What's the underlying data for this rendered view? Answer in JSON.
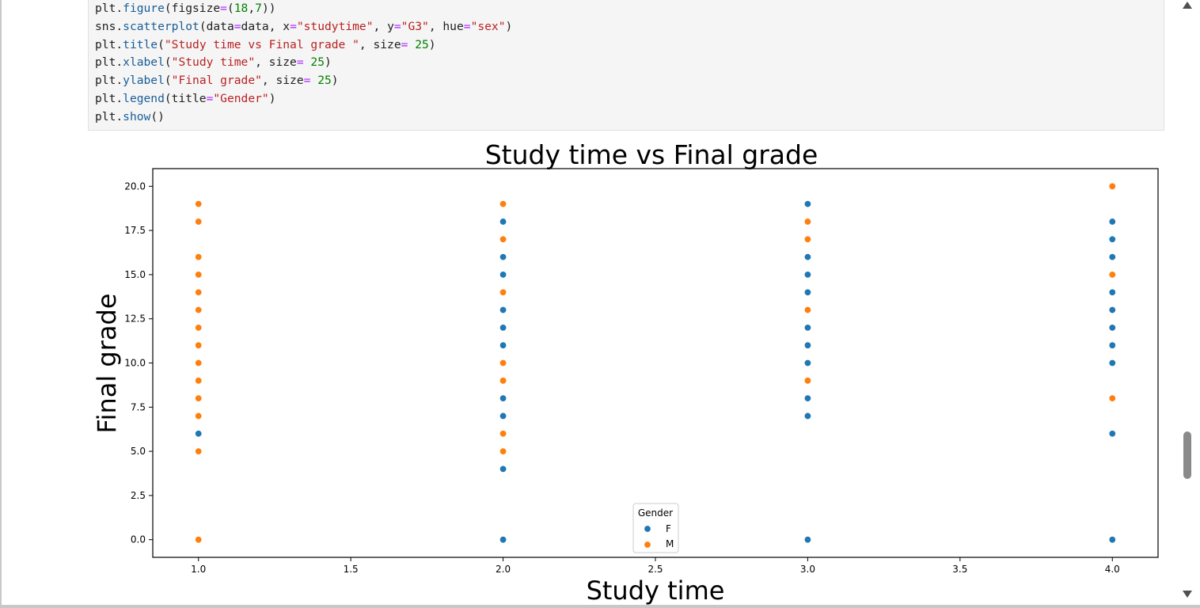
{
  "code": {
    "lines": [
      [
        {
          "t": "plt.",
          "c": "txt"
        },
        {
          "t": "figure",
          "c": "fn"
        },
        {
          "t": "(figsize",
          "c": "txt"
        },
        {
          "t": "=",
          "c": "op"
        },
        {
          "t": "(",
          "c": "txt"
        },
        {
          "t": "18",
          "c": "num"
        },
        {
          "t": ",",
          "c": "txt"
        },
        {
          "t": "7",
          "c": "num"
        },
        {
          "t": "))",
          "c": "txt"
        }
      ],
      [
        {
          "t": "sns.",
          "c": "txt"
        },
        {
          "t": "scatterplot",
          "c": "fn"
        },
        {
          "t": "(data",
          "c": "txt"
        },
        {
          "t": "=",
          "c": "op"
        },
        {
          "t": "data, x",
          "c": "txt"
        },
        {
          "t": "=",
          "c": "op"
        },
        {
          "t": "\"studytime\"",
          "c": "str"
        },
        {
          "t": ", y",
          "c": "txt"
        },
        {
          "t": "=",
          "c": "op"
        },
        {
          "t": "\"G3\"",
          "c": "str"
        },
        {
          "t": ", hue",
          "c": "txt"
        },
        {
          "t": "=",
          "c": "op"
        },
        {
          "t": "\"sex\"",
          "c": "str"
        },
        {
          "t": ")",
          "c": "txt"
        }
      ],
      [
        {
          "t": "plt.",
          "c": "txt"
        },
        {
          "t": "title",
          "c": "fn"
        },
        {
          "t": "(",
          "c": "txt"
        },
        {
          "t": "\"Study time vs Final grade \"",
          "c": "str"
        },
        {
          "t": ", size",
          "c": "txt"
        },
        {
          "t": "=",
          "c": "op"
        },
        {
          "t": " ",
          "c": "txt"
        },
        {
          "t": "25",
          "c": "num"
        },
        {
          "t": ")",
          "c": "txt"
        }
      ],
      [
        {
          "t": "plt.",
          "c": "txt"
        },
        {
          "t": "xlabel",
          "c": "fn"
        },
        {
          "t": "(",
          "c": "txt"
        },
        {
          "t": "\"Study time\"",
          "c": "str"
        },
        {
          "t": ", size",
          "c": "txt"
        },
        {
          "t": "=",
          "c": "op"
        },
        {
          "t": " ",
          "c": "txt"
        },
        {
          "t": "25",
          "c": "num"
        },
        {
          "t": ")",
          "c": "txt"
        }
      ],
      [
        {
          "t": "plt.",
          "c": "txt"
        },
        {
          "t": "ylabel",
          "c": "fn"
        },
        {
          "t": "(",
          "c": "txt"
        },
        {
          "t": "\"Final grade\"",
          "c": "str"
        },
        {
          "t": ", size",
          "c": "txt"
        },
        {
          "t": "=",
          "c": "op"
        },
        {
          "t": " ",
          "c": "txt"
        },
        {
          "t": "25",
          "c": "num"
        },
        {
          "t": ")",
          "c": "txt"
        }
      ],
      [
        {
          "t": "plt.",
          "c": "txt"
        },
        {
          "t": "legend",
          "c": "fn"
        },
        {
          "t": "(title",
          "c": "txt"
        },
        {
          "t": "=",
          "c": "op"
        },
        {
          "t": "\"Gender\"",
          "c": "str"
        },
        {
          "t": ")",
          "c": "txt"
        }
      ],
      [
        {
          "t": "plt.",
          "c": "txt"
        },
        {
          "t": "show",
          "c": "fn"
        },
        {
          "t": "()",
          "c": "txt"
        }
      ]
    ]
  },
  "chart_data": {
    "type": "scatter",
    "title": "Study time vs Final grade",
    "xlabel": "Study time",
    "ylabel": "Final grade",
    "xlim": [
      0.85,
      4.15
    ],
    "ylim": [
      -1.0,
      21.0
    ],
    "xticks": [
      "1.0",
      "1.5",
      "2.0",
      "2.5",
      "3.0",
      "3.5",
      "4.0"
    ],
    "yticks": [
      "0.0",
      "2.5",
      "5.0",
      "7.5",
      "10.0",
      "12.5",
      "15.0",
      "17.5",
      "20.0"
    ],
    "grid": false,
    "legend": {
      "title": "Gender",
      "placement": "lower center"
    },
    "series": [
      {
        "name": "F",
        "color": "#1f77b4",
        "points": [
          [
            1,
            6
          ],
          [
            1,
            10
          ],
          [
            1,
            11
          ],
          [
            1,
            12
          ],
          [
            2,
            0
          ],
          [
            2,
            4
          ],
          [
            2,
            7
          ],
          [
            2,
            8
          ],
          [
            2,
            11
          ],
          [
            2,
            12
          ],
          [
            2,
            13
          ],
          [
            2,
            15
          ],
          [
            2,
            16
          ],
          [
            2,
            18
          ],
          [
            3,
            0
          ],
          [
            3,
            7
          ],
          [
            3,
            8
          ],
          [
            3,
            10
          ],
          [
            3,
            11
          ],
          [
            3,
            12
          ],
          [
            3,
            14
          ],
          [
            3,
            15
          ],
          [
            3,
            16
          ],
          [
            3,
            19
          ],
          [
            4,
            0
          ],
          [
            4,
            6
          ],
          [
            4,
            10
          ],
          [
            4,
            11
          ],
          [
            4,
            12
          ],
          [
            4,
            13
          ],
          [
            4,
            14
          ],
          [
            4,
            16
          ],
          [
            4,
            17
          ],
          [
            4,
            18
          ]
        ]
      },
      {
        "name": "M",
        "color": "#ff7f0e",
        "points": [
          [
            1,
            0
          ],
          [
            1,
            5
          ],
          [
            1,
            7
          ],
          [
            1,
            8
          ],
          [
            1,
            9
          ],
          [
            1,
            10
          ],
          [
            1,
            11
          ],
          [
            1,
            12
          ],
          [
            1,
            13
          ],
          [
            1,
            14
          ],
          [
            1,
            15
          ],
          [
            1,
            16
          ],
          [
            1,
            18
          ],
          [
            1,
            19
          ],
          [
            2,
            5
          ],
          [
            2,
            6
          ],
          [
            2,
            9
          ],
          [
            2,
            10
          ],
          [
            2,
            14
          ],
          [
            2,
            17
          ],
          [
            2,
            19
          ],
          [
            3,
            9
          ],
          [
            3,
            13
          ],
          [
            3,
            17
          ],
          [
            3,
            18
          ],
          [
            4,
            8
          ],
          [
            4,
            15
          ],
          [
            4,
            20
          ]
        ]
      }
    ]
  },
  "scrollbar": {
    "up_icon": "triangle-up",
    "down_icon": "triangle-down"
  }
}
